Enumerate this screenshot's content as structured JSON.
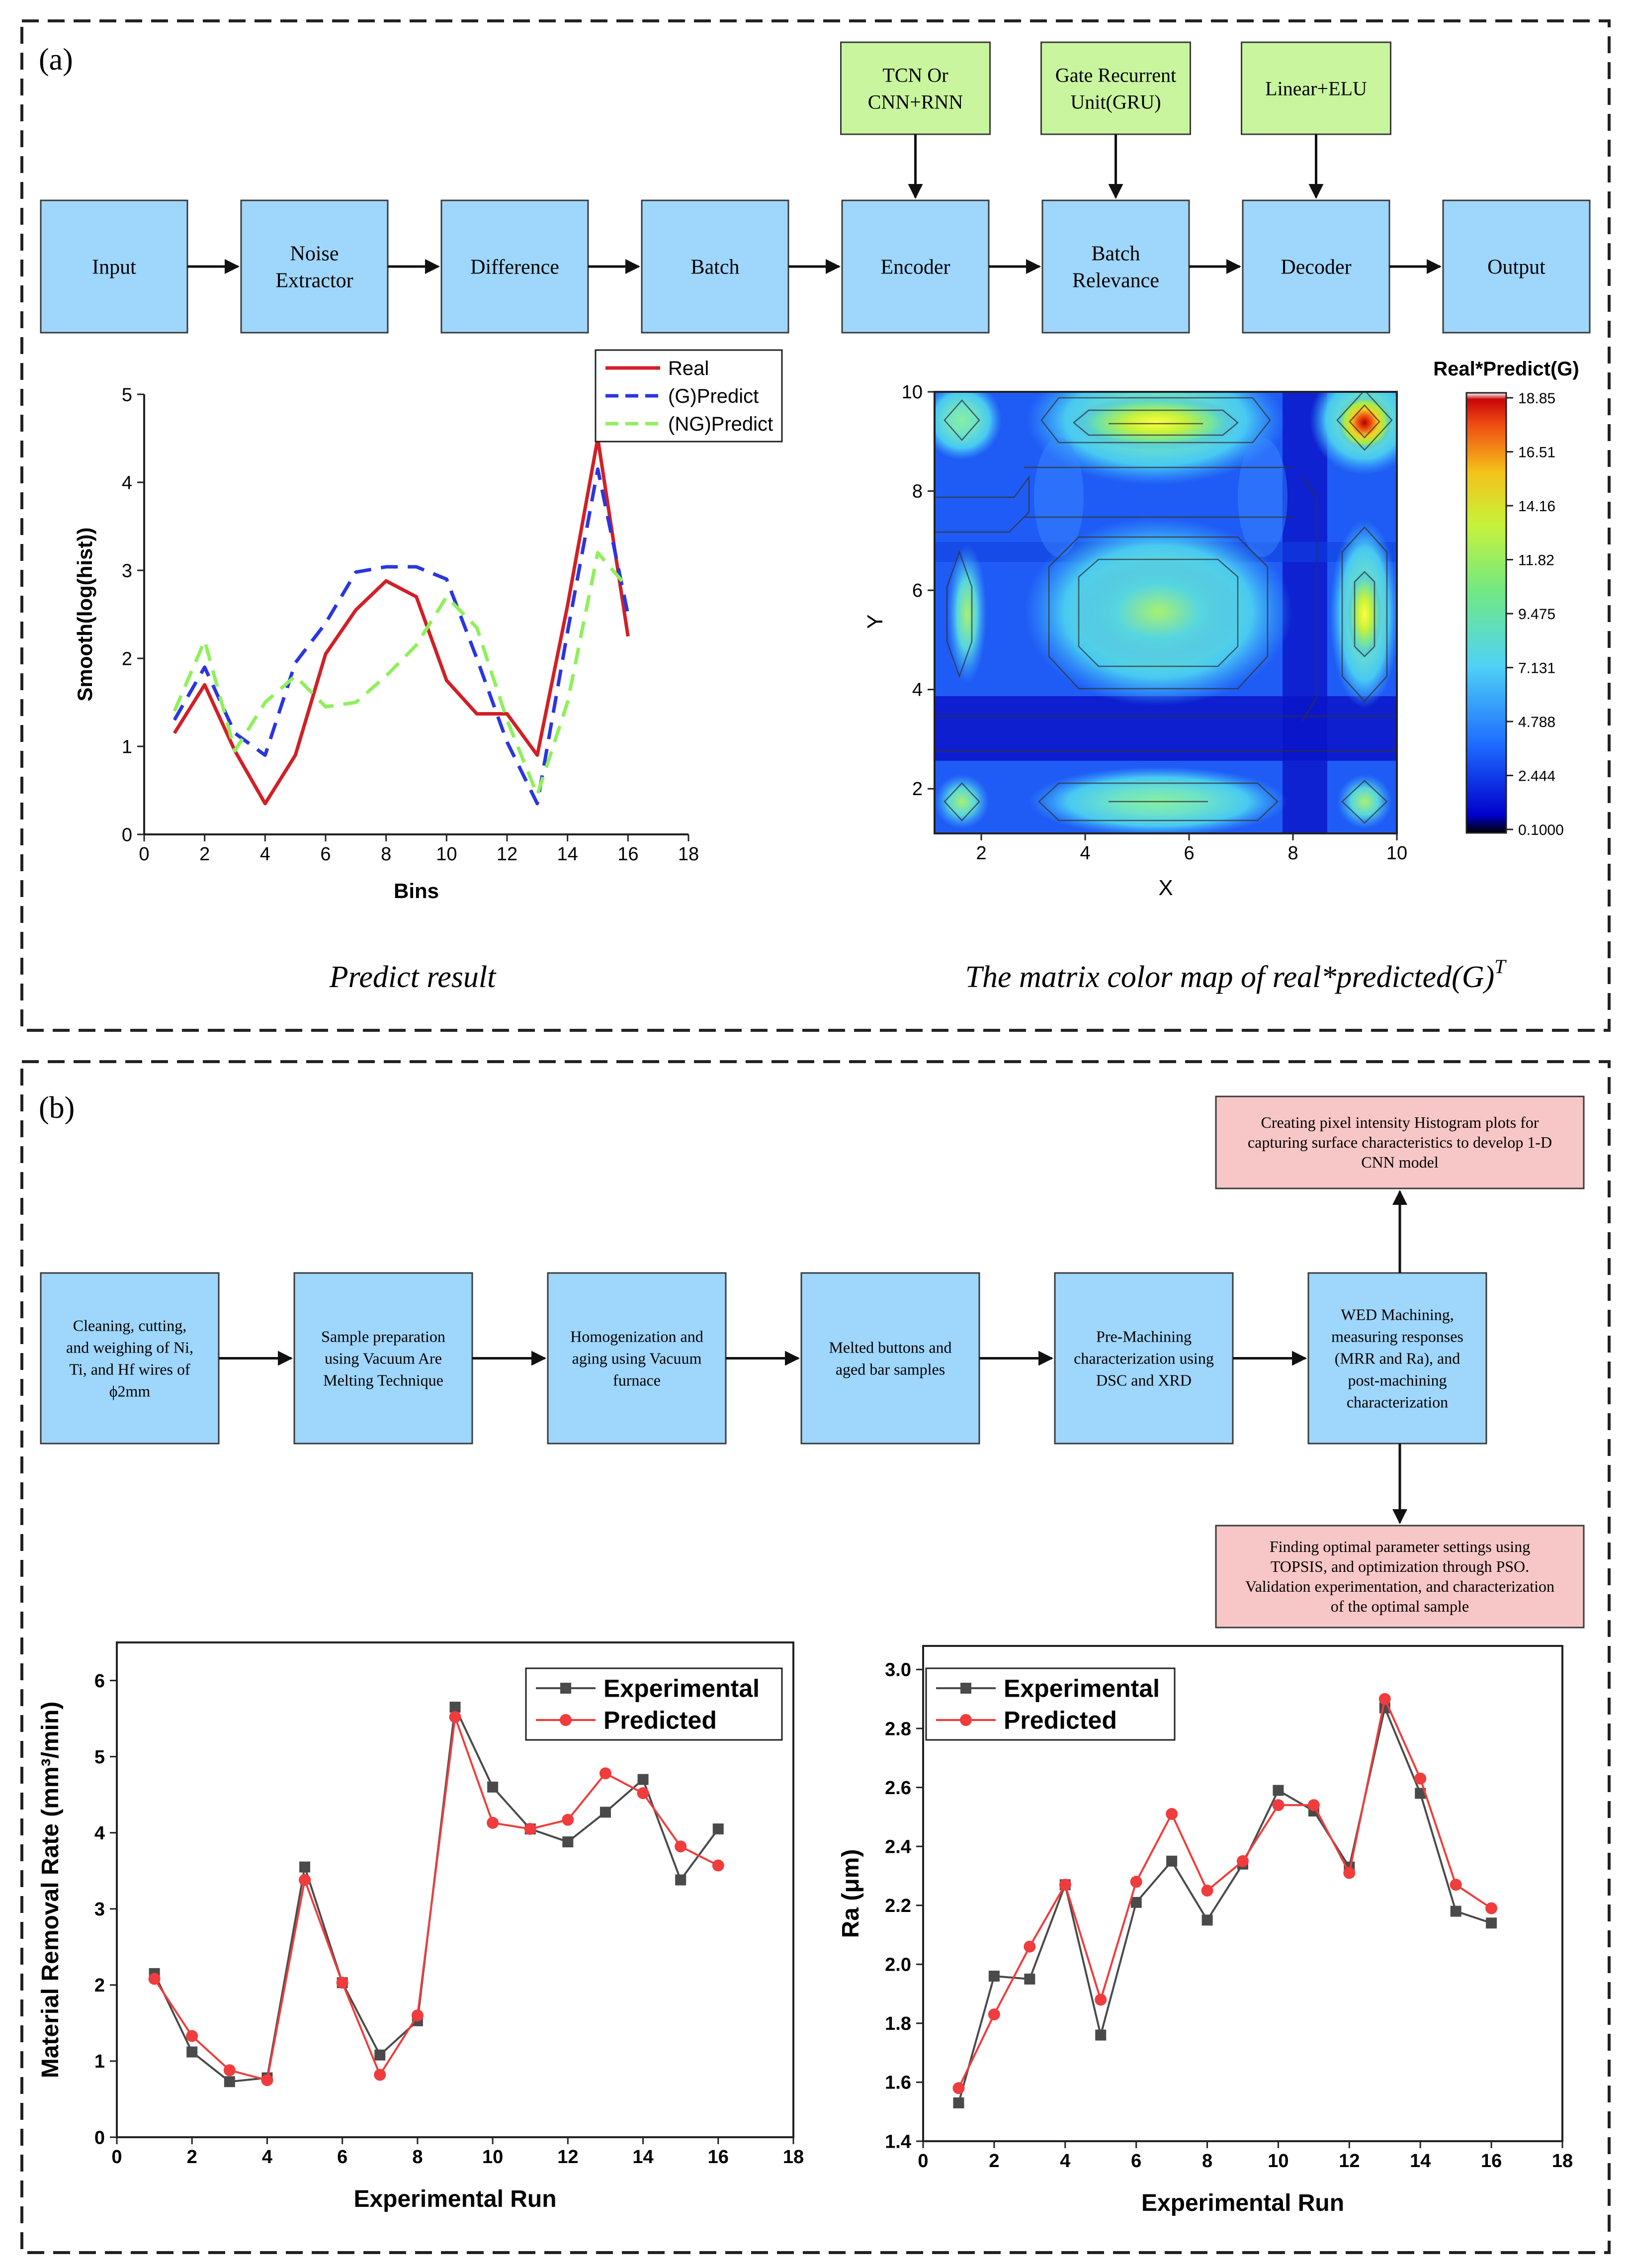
{
  "panel_a": {
    "label": "(a)",
    "pipeline": [
      "Input",
      "Noise\nExtractor",
      "Difference",
      "Batch",
      "Encoder",
      "Batch\nRelevance",
      "Decoder",
      "Output"
    ],
    "modules": [
      {
        "label": "TCN Or\nCNN+RNN",
        "target": 4
      },
      {
        "label": "Gate Recurrent\nUnit(GRU)",
        "target": 5
      },
      {
        "label": "Linear+ELU",
        "target": 6
      }
    ],
    "caption_left": "Predict result",
    "caption_right": "The matrix color map of real*predicted(G)",
    "caption_right_sup": "T",
    "colormap": {
      "title": "Real*Predict(G)",
      "xlabel": "X",
      "ylabel": "Y",
      "x_ticks": [
        "2",
        "4",
        "6",
        "8",
        "10"
      ],
      "y_ticks": [
        "2",
        "4",
        "6",
        "8",
        "10"
      ],
      "scale_labels": [
        "18.85",
        "16.51",
        "14.16",
        "11.82",
        "9.475",
        "7.131",
        "4.788",
        "2.444",
        "0.1000"
      ]
    }
  },
  "panel_b": {
    "label": "(b)",
    "flow": [
      "Cleaning, cutting,\nand weighing of Ni,\nTi, and Hf wires of\nϕ2mm",
      "Sample preparation\nusing Vacuum Are\nMelting Technique",
      "Homogenization and\naging using Vacuum\nfurnace",
      "Melted buttons and\naged bar samples",
      "Pre-Machining\ncharacterization using\nDSC and XRD",
      "WED Machining,\nmeasuring responses\n(MRR and Ra), and\npost-machining\ncharacterization"
    ],
    "top_box": "Creating pixel intensity Histogram plots for\ncapturing surface characteristics to develop 1-D\nCNN model",
    "bottom_box": "Finding optimal parameter settings using\nTOPSIS, and optimization through PSO.\nValidation experimentation, and characterization\nof the optimal sample"
  },
  "colors": {
    "real": "#d21f26",
    "g_predict": "#2a36e0",
    "ng_predict": "#8ff05a",
    "experimental": "#4a4a4a",
    "predicted": "#f03c3c"
  },
  "chart_data": [
    {
      "type": "line",
      "id": "predict",
      "title": "",
      "xlabel": "Bins",
      "ylabel": "Smooth(log(hist))",
      "xlim": [
        0,
        18
      ],
      "ylim": [
        0,
        5
      ],
      "x_ticks": [
        0,
        2,
        4,
        6,
        8,
        10,
        12,
        14,
        16,
        18
      ],
      "y_ticks": [
        0,
        1,
        2,
        3,
        4,
        5
      ],
      "x": [
        1,
        2,
        3,
        4,
        5,
        6,
        7,
        8,
        9,
        10,
        11,
        12,
        13,
        14,
        15,
        16
      ],
      "series": [
        {
          "name": "Real",
          "style": "solid",
          "color_key": "real",
          "values": [
            1.15,
            1.7,
            0.95,
            0.35,
            0.9,
            2.05,
            2.55,
            2.88,
            2.7,
            1.75,
            1.37,
            1.37,
            0.9,
            2.6,
            4.5,
            2.25
          ]
        },
        {
          "name": "(G)Predict",
          "style": "dash",
          "color_key": "g_predict",
          "values": [
            1.3,
            1.9,
            1.15,
            0.9,
            1.95,
            2.4,
            2.98,
            3.04,
            3.04,
            2.9,
            2.0,
            1.05,
            0.35,
            2.3,
            4.15,
            2.5
          ]
        },
        {
          "name": "(NG)Predict",
          "style": "dash",
          "color_key": "ng_predict",
          "values": [
            1.4,
            2.2,
            0.95,
            1.5,
            1.8,
            1.45,
            1.5,
            1.8,
            2.15,
            2.7,
            2.35,
            1.3,
            0.45,
            1.5,
            3.2,
            2.8
          ]
        }
      ]
    },
    {
      "type": "line",
      "id": "mrr",
      "title": "",
      "xlabel": "Experimental Run",
      "ylabel": "Material Removal Rate (mm³/min)",
      "xlim": [
        0,
        18
      ],
      "ylim": [
        0,
        6.5
      ],
      "x_ticks": [
        0,
        2,
        4,
        6,
        8,
        10,
        12,
        14,
        16,
        18
      ],
      "y_ticks": [
        0,
        1,
        2,
        3,
        4,
        5,
        6
      ],
      "x": [
        1,
        2,
        3,
        4,
        5,
        6,
        7,
        8,
        9,
        10,
        11,
        12,
        13,
        14,
        15,
        16
      ],
      "series": [
        {
          "name": "Experimental",
          "marker": "square",
          "color_key": "experimental",
          "values": [
            2.15,
            1.12,
            0.73,
            0.78,
            3.55,
            2.03,
            1.08,
            1.53,
            5.65,
            4.6,
            4.05,
            3.88,
            4.27,
            4.7,
            3.38,
            4.05
          ]
        },
        {
          "name": "Predicted",
          "marker": "circle",
          "color_key": "predicted",
          "values": [
            2.08,
            1.33,
            0.88,
            0.75,
            3.38,
            2.03,
            0.82,
            1.6,
            5.52,
            4.13,
            4.05,
            4.17,
            4.78,
            4.52,
            3.82,
            3.57
          ]
        }
      ]
    },
    {
      "type": "line",
      "id": "ra",
      "title": "",
      "xlabel": "Experimental Run",
      "ylabel": "Ra (μm)",
      "xlim": [
        0,
        18
      ],
      "ylim": [
        1.4,
        3.08
      ],
      "x_ticks": [
        0,
        2,
        4,
        6,
        8,
        10,
        12,
        14,
        16,
        18
      ],
      "y_ticks": [
        1.4,
        1.6,
        1.8,
        2.0,
        2.2,
        2.4,
        2.6,
        2.8,
        3.0
      ],
      "x": [
        1,
        2,
        3,
        4,
        5,
        6,
        7,
        8,
        9,
        10,
        11,
        12,
        13,
        14,
        15,
        16
      ],
      "series": [
        {
          "name": "Experimental",
          "marker": "square",
          "color_key": "experimental",
          "values": [
            1.53,
            1.96,
            1.95,
            2.27,
            1.76,
            2.21,
            2.35,
            2.15,
            2.34,
            2.59,
            2.52,
            2.33,
            2.87,
            2.58,
            2.18,
            2.14
          ]
        },
        {
          "name": "Predicted",
          "marker": "circle",
          "color_key": "predicted",
          "values": [
            1.58,
            1.83,
            2.06,
            2.27,
            1.88,
            2.28,
            2.51,
            2.25,
            2.35,
            2.54,
            2.54,
            2.31,
            2.9,
            2.63,
            2.27,
            2.19
          ]
        }
      ]
    }
  ]
}
